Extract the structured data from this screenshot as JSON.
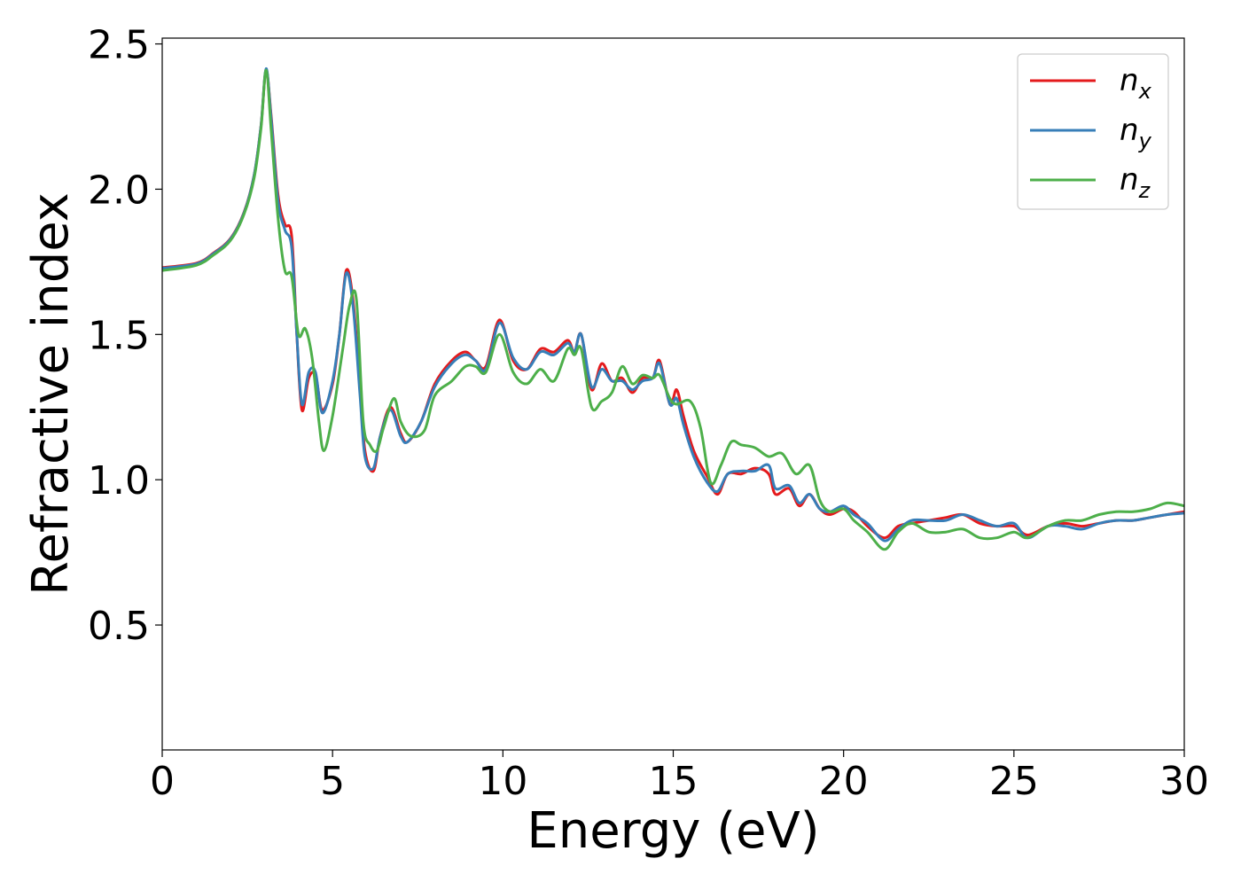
{
  "chart_data": {
    "type": "line",
    "xlabel": "Energy (eV)",
    "ylabel": "Refractive index",
    "xlim": [
      0,
      30
    ],
    "ylim": [
      0.07,
      2.52
    ],
    "xticks": [
      0,
      5,
      10,
      15,
      20,
      25,
      30
    ],
    "xtick_labels": [
      "0",
      "5",
      "10",
      "15",
      "20",
      "25",
      "30"
    ],
    "yticks": [
      0.5,
      1.0,
      1.5,
      2.0,
      2.5
    ],
    "ytick_labels": [
      "0.5",
      "1.0",
      "1.5",
      "2.0",
      "2.5"
    ],
    "grid": false,
    "legend": {
      "position": "top-right",
      "entries": [
        {
          "base": "n",
          "sub": "x"
        },
        {
          "base": "n",
          "sub": "y"
        },
        {
          "base": "n",
          "sub": "z"
        }
      ]
    },
    "series": [
      {
        "name": "n_x",
        "color": "#e41a1c",
        "points": [
          [
            0,
            1.73
          ],
          [
            1.0,
            1.745
          ],
          [
            1.5,
            1.78
          ],
          [
            2.0,
            1.83
          ],
          [
            2.4,
            1.92
          ],
          [
            2.7,
            2.05
          ],
          [
            2.9,
            2.22
          ],
          [
            3.05,
            2.41
          ],
          [
            3.2,
            2.25
          ],
          [
            3.4,
            1.98
          ],
          [
            3.6,
            1.88
          ],
          [
            3.8,
            1.84
          ],
          [
            3.95,
            1.5
          ],
          [
            4.1,
            1.24
          ],
          [
            4.3,
            1.35
          ],
          [
            4.5,
            1.36
          ],
          [
            4.7,
            1.24
          ],
          [
            5.0,
            1.33
          ],
          [
            5.2,
            1.5
          ],
          [
            5.4,
            1.72
          ],
          [
            5.6,
            1.62
          ],
          [
            5.8,
            1.33
          ],
          [
            5.95,
            1.1
          ],
          [
            6.2,
            1.03
          ],
          [
            6.4,
            1.15
          ],
          [
            6.7,
            1.25
          ],
          [
            7.0,
            1.16
          ],
          [
            7.2,
            1.13
          ],
          [
            7.6,
            1.2
          ],
          [
            8.0,
            1.33
          ],
          [
            8.5,
            1.41
          ],
          [
            8.9,
            1.44
          ],
          [
            9.2,
            1.41
          ],
          [
            9.5,
            1.39
          ],
          [
            9.9,
            1.55
          ],
          [
            10.3,
            1.41
          ],
          [
            10.7,
            1.38
          ],
          [
            11.1,
            1.45
          ],
          [
            11.5,
            1.44
          ],
          [
            11.9,
            1.48
          ],
          [
            12.1,
            1.44
          ],
          [
            12.3,
            1.5
          ],
          [
            12.6,
            1.31
          ],
          [
            12.9,
            1.4
          ],
          [
            13.2,
            1.34
          ],
          [
            13.5,
            1.35
          ],
          [
            13.8,
            1.3
          ],
          [
            14.1,
            1.35
          ],
          [
            14.4,
            1.35
          ],
          [
            14.6,
            1.41
          ],
          [
            14.9,
            1.26
          ],
          [
            15.1,
            1.31
          ],
          [
            15.3,
            1.22
          ],
          [
            15.6,
            1.1
          ],
          [
            16.0,
            1.01
          ],
          [
            16.3,
            0.95
          ],
          [
            16.6,
            1.02
          ],
          [
            17.0,
            1.02
          ],
          [
            17.4,
            1.04
          ],
          [
            17.8,
            1.02
          ],
          [
            18.0,
            0.95
          ],
          [
            18.4,
            0.97
          ],
          [
            18.7,
            0.91
          ],
          [
            19.0,
            0.95
          ],
          [
            19.3,
            0.9
          ],
          [
            19.6,
            0.88
          ],
          [
            20.0,
            0.9
          ],
          [
            20.3,
            0.89
          ],
          [
            20.7,
            0.84
          ],
          [
            21.2,
            0.8
          ],
          [
            21.6,
            0.84
          ],
          [
            22.0,
            0.85
          ],
          [
            22.5,
            0.86
          ],
          [
            23.0,
            0.87
          ],
          [
            23.5,
            0.88
          ],
          [
            24.0,
            0.85
          ],
          [
            24.5,
            0.84
          ],
          [
            25.0,
            0.84
          ],
          [
            25.4,
            0.81
          ],
          [
            26.0,
            0.84
          ],
          [
            26.5,
            0.85
          ],
          [
            27.0,
            0.84
          ],
          [
            27.5,
            0.85
          ],
          [
            28.0,
            0.86
          ],
          [
            28.5,
            0.86
          ],
          [
            29.0,
            0.87
          ],
          [
            29.5,
            0.88
          ],
          [
            30.0,
            0.89
          ]
        ]
      },
      {
        "name": "n_y",
        "color": "#377eb8",
        "points": [
          [
            0,
            1.728
          ],
          [
            1.0,
            1.743
          ],
          [
            1.5,
            1.778
          ],
          [
            2.0,
            1.828
          ],
          [
            2.4,
            1.918
          ],
          [
            2.7,
            2.05
          ],
          [
            2.9,
            2.22
          ],
          [
            3.05,
            2.415
          ],
          [
            3.2,
            2.24
          ],
          [
            3.4,
            1.96
          ],
          [
            3.6,
            1.86
          ],
          [
            3.8,
            1.8
          ],
          [
            3.95,
            1.5
          ],
          [
            4.1,
            1.26
          ],
          [
            4.3,
            1.37
          ],
          [
            4.5,
            1.37
          ],
          [
            4.7,
            1.23
          ],
          [
            5.0,
            1.34
          ],
          [
            5.2,
            1.5
          ],
          [
            5.4,
            1.71
          ],
          [
            5.6,
            1.6
          ],
          [
            5.8,
            1.3
          ],
          [
            5.95,
            1.08
          ],
          [
            6.2,
            1.04
          ],
          [
            6.4,
            1.15
          ],
          [
            6.7,
            1.24
          ],
          [
            7.0,
            1.15
          ],
          [
            7.2,
            1.13
          ],
          [
            7.6,
            1.2
          ],
          [
            8.0,
            1.32
          ],
          [
            8.5,
            1.4
          ],
          [
            8.9,
            1.43
          ],
          [
            9.2,
            1.41
          ],
          [
            9.5,
            1.38
          ],
          [
            9.9,
            1.54
          ],
          [
            10.3,
            1.42
          ],
          [
            10.7,
            1.38
          ],
          [
            11.1,
            1.44
          ],
          [
            11.5,
            1.43
          ],
          [
            11.9,
            1.47
          ],
          [
            12.1,
            1.44
          ],
          [
            12.3,
            1.5
          ],
          [
            12.6,
            1.32
          ],
          [
            12.9,
            1.38
          ],
          [
            13.2,
            1.34
          ],
          [
            13.5,
            1.34
          ],
          [
            13.8,
            1.31
          ],
          [
            14.1,
            1.34
          ],
          [
            14.4,
            1.35
          ],
          [
            14.6,
            1.4
          ],
          [
            14.9,
            1.26
          ],
          [
            15.1,
            1.28
          ],
          [
            15.3,
            1.19
          ],
          [
            15.6,
            1.08
          ],
          [
            16.0,
            0.99
          ],
          [
            16.3,
            0.96
          ],
          [
            16.6,
            1.02
          ],
          [
            17.0,
            1.03
          ],
          [
            17.4,
            1.03
          ],
          [
            17.8,
            1.05
          ],
          [
            18.0,
            0.97
          ],
          [
            18.4,
            0.98
          ],
          [
            18.7,
            0.92
          ],
          [
            19.0,
            0.95
          ],
          [
            19.3,
            0.9
          ],
          [
            19.6,
            0.89
          ],
          [
            20.0,
            0.91
          ],
          [
            20.3,
            0.88
          ],
          [
            20.7,
            0.85
          ],
          [
            21.2,
            0.79
          ],
          [
            21.6,
            0.83
          ],
          [
            22.0,
            0.86
          ],
          [
            22.5,
            0.86
          ],
          [
            23.0,
            0.86
          ],
          [
            23.5,
            0.88
          ],
          [
            24.0,
            0.86
          ],
          [
            24.5,
            0.84
          ],
          [
            25.0,
            0.85
          ],
          [
            25.4,
            0.8
          ],
          [
            26.0,
            0.84
          ],
          [
            26.5,
            0.84
          ],
          [
            27.0,
            0.83
          ],
          [
            27.5,
            0.85
          ],
          [
            28.0,
            0.86
          ],
          [
            28.5,
            0.86
          ],
          [
            29.0,
            0.87
          ],
          [
            29.5,
            0.88
          ],
          [
            30.0,
            0.885
          ]
        ]
      },
      {
        "name": "n_z",
        "color": "#4daf4a",
        "points": [
          [
            0,
            1.72
          ],
          [
            1.0,
            1.738
          ],
          [
            1.5,
            1.773
          ],
          [
            2.0,
            1.823
          ],
          [
            2.4,
            1.913
          ],
          [
            2.7,
            2.04
          ],
          [
            2.9,
            2.21
          ],
          [
            3.05,
            2.41
          ],
          [
            3.2,
            2.2
          ],
          [
            3.4,
            1.9
          ],
          [
            3.6,
            1.72
          ],
          [
            3.8,
            1.7
          ],
          [
            4.0,
            1.5
          ],
          [
            4.2,
            1.52
          ],
          [
            4.4,
            1.42
          ],
          [
            4.6,
            1.2
          ],
          [
            4.75,
            1.1
          ],
          [
            5.0,
            1.22
          ],
          [
            5.3,
            1.45
          ],
          [
            5.5,
            1.6
          ],
          [
            5.7,
            1.62
          ],
          [
            5.9,
            1.2
          ],
          [
            6.1,
            1.12
          ],
          [
            6.3,
            1.1
          ],
          [
            6.5,
            1.18
          ],
          [
            6.8,
            1.28
          ],
          [
            7.0,
            1.2
          ],
          [
            7.3,
            1.15
          ],
          [
            7.7,
            1.17
          ],
          [
            8.0,
            1.29
          ],
          [
            8.5,
            1.34
          ],
          [
            8.9,
            1.39
          ],
          [
            9.2,
            1.39
          ],
          [
            9.5,
            1.37
          ],
          [
            9.9,
            1.5
          ],
          [
            10.3,
            1.37
          ],
          [
            10.7,
            1.33
          ],
          [
            11.1,
            1.38
          ],
          [
            11.5,
            1.34
          ],
          [
            11.9,
            1.45
          ],
          [
            12.1,
            1.43
          ],
          [
            12.3,
            1.45
          ],
          [
            12.6,
            1.25
          ],
          [
            12.9,
            1.27
          ],
          [
            13.2,
            1.3
          ],
          [
            13.5,
            1.39
          ],
          [
            13.8,
            1.33
          ],
          [
            14.1,
            1.36
          ],
          [
            14.4,
            1.35
          ],
          [
            14.6,
            1.36
          ],
          [
            14.9,
            1.28
          ],
          [
            15.1,
            1.26
          ],
          [
            15.5,
            1.27
          ],
          [
            15.8,
            1.18
          ],
          [
            16.1,
            0.99
          ],
          [
            16.4,
            1.05
          ],
          [
            16.7,
            1.13
          ],
          [
            17.0,
            1.12
          ],
          [
            17.4,
            1.11
          ],
          [
            17.8,
            1.08
          ],
          [
            18.2,
            1.09
          ],
          [
            18.6,
            1.02
          ],
          [
            19.0,
            1.05
          ],
          [
            19.3,
            0.93
          ],
          [
            19.6,
            0.89
          ],
          [
            20.0,
            0.9
          ],
          [
            20.3,
            0.86
          ],
          [
            20.7,
            0.82
          ],
          [
            21.2,
            0.76
          ],
          [
            21.6,
            0.82
          ],
          [
            22.0,
            0.85
          ],
          [
            22.5,
            0.82
          ],
          [
            23.0,
            0.82
          ],
          [
            23.5,
            0.83
          ],
          [
            24.0,
            0.8
          ],
          [
            24.5,
            0.8
          ],
          [
            25.0,
            0.82
          ],
          [
            25.4,
            0.8
          ],
          [
            26.0,
            0.84
          ],
          [
            26.5,
            0.86
          ],
          [
            27.0,
            0.86
          ],
          [
            27.5,
            0.88
          ],
          [
            28.0,
            0.89
          ],
          [
            28.5,
            0.89
          ],
          [
            29.0,
            0.9
          ],
          [
            29.5,
            0.92
          ],
          [
            30.0,
            0.91
          ]
        ]
      }
    ]
  }
}
